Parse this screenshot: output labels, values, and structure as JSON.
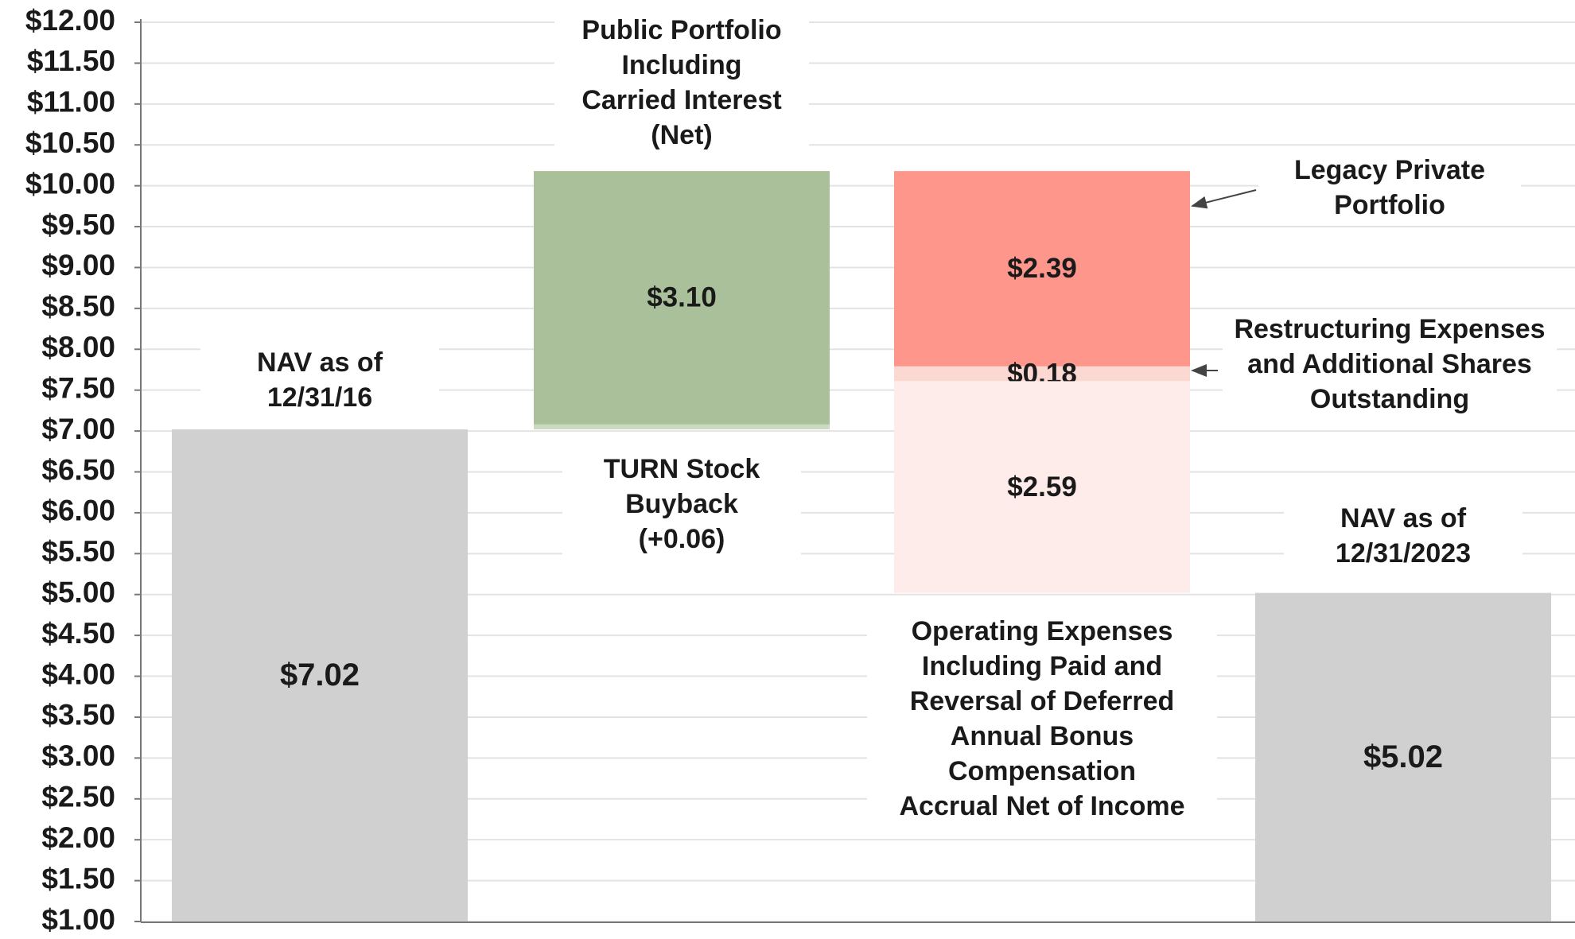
{
  "chart_data": {
    "type": "waterfall",
    "ylim": [
      1,
      12
    ],
    "yticks": [
      {
        "value": 1,
        "label": "$1.00"
      },
      {
        "value": 1.5,
        "label": "$1.50"
      },
      {
        "value": 2,
        "label": "$2.00"
      },
      {
        "value": 2.5,
        "label": "$2.50"
      },
      {
        "value": 3,
        "label": "$3.00"
      },
      {
        "value": 3.5,
        "label": "$3.50"
      },
      {
        "value": 4,
        "label": "$4.00"
      },
      {
        "value": 4.5,
        "label": "$4.50"
      },
      {
        "value": 5,
        "label": "$5.00"
      },
      {
        "value": 5.5,
        "label": "$5.50"
      },
      {
        "value": 6,
        "label": "$6.00"
      },
      {
        "value": 6.5,
        "label": "$6.50"
      },
      {
        "value": 7,
        "label": "$7.00"
      },
      {
        "value": 7.5,
        "label": "$7.50"
      },
      {
        "value": 8,
        "label": "$8.00"
      },
      {
        "value": 8.5,
        "label": "$8.50"
      },
      {
        "value": 9,
        "label": "$9.00"
      },
      {
        "value": 9.5,
        "label": "$9.50"
      },
      {
        "value": 10,
        "label": "$10.00"
      },
      {
        "value": 10.5,
        "label": "$10.50"
      },
      {
        "value": 11,
        "label": "$11.00"
      },
      {
        "value": 11.5,
        "label": "$11.50"
      },
      {
        "value": 12,
        "label": "$12.00"
      }
    ],
    "grid": true,
    "columns": [
      {
        "segments": [
          {
            "name": "NAV as of\n12/31/16",
            "kind": "total",
            "value": 7.02,
            "value_label": "$7.02",
            "color": "#d0d0d0"
          }
        ]
      },
      {
        "segments": [
          {
            "name": "TURN Stock\nBuyback\n(+0.06)",
            "kind": "increase",
            "value": 0.06,
            "color": "#c9dcc0"
          },
          {
            "name": "Public Portfolio\nIncluding\nCarried Interest\n(Net)",
            "kind": "increase",
            "value": 3.1,
            "value_label": "$3.10",
            "color": "#a9c09a"
          }
        ]
      },
      {
        "segments": [
          {
            "name": "Legacy Private\nPortfolio",
            "kind": "decrease",
            "value": 2.39,
            "value_label": "$2.39",
            "color": "#fe968c"
          },
          {
            "name": "Restructuring Expenses\nand Additional Shares\nOutstanding",
            "kind": "decrease",
            "value": 0.18,
            "value_label": "$0.18",
            "color": "#fcd8d3"
          },
          {
            "name": "Operating Expenses\nIncluding Paid and\nReversal of Deferred\nAnnual Bonus\nCompensation\nAccrual Net of Income",
            "kind": "decrease",
            "value": 2.59,
            "value_label": "$2.59",
            "color": "#fdece9"
          }
        ]
      },
      {
        "segments": [
          {
            "name": "NAV as of\n12/31/2023",
            "kind": "total",
            "value": 5.02,
            "value_label": "$5.02",
            "color": "#d0d0d0"
          }
        ]
      }
    ]
  }
}
